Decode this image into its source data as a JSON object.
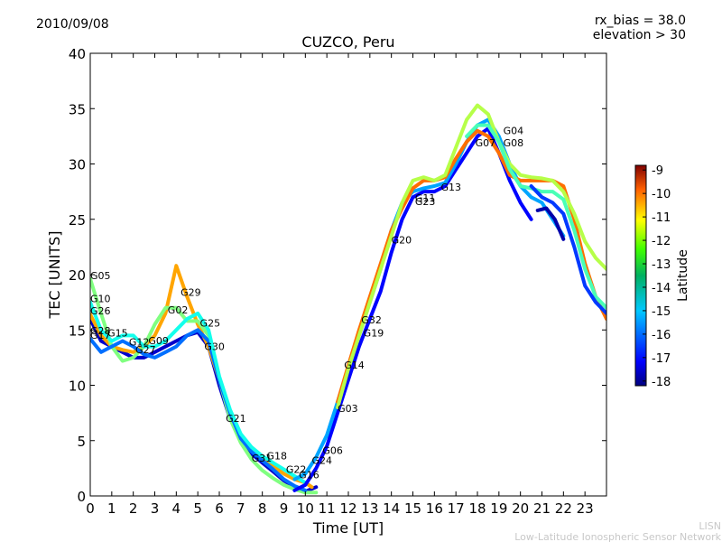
{
  "header": {
    "date": "2010/09/08",
    "rx_bias": "rx_bias = 38.0",
    "elevation": "elevation > 30"
  },
  "footer": {
    "org_short": "LISN",
    "org_long": "Low-Latitude Ionospheric Sensor Network"
  },
  "colors": {
    "axes": "#000000",
    "background": "#ffffff",
    "footer_text": "#c8c8c8",
    "colormap": [
      "#00007f",
      "#0000ff",
      "#007fff",
      "#00c8c8",
      "#00a050",
      "#00e000",
      "#90ff00",
      "#ffff00",
      "#ff9000",
      "#ff0000",
      "#7f0000"
    ]
  },
  "chart_data": {
    "type": "scatter",
    "title": "CUZCO, Peru",
    "xlabel": "Time [UT]",
    "ylabel": "TEC [UNITS]",
    "xlim": [
      0,
      24
    ],
    "ylim": [
      0,
      40
    ],
    "xticks": [
      "0",
      "1",
      "2",
      "3",
      "4",
      "5",
      "6",
      "7",
      "8",
      "9",
      "10",
      "11",
      "12",
      "13",
      "14",
      "15",
      "16",
      "17",
      "18",
      "19",
      "20",
      "21",
      "22",
      "23"
    ],
    "yticks": [
      "0",
      "5",
      "10",
      "15",
      "20",
      "25",
      "30",
      "35",
      "40"
    ],
    "grid": false,
    "colorbar": {
      "label": "Latitude",
      "range": [
        -18.2,
        -8.8
      ],
      "ticks": [
        "-9",
        "-10",
        "-11",
        "-12",
        "-13",
        "-14",
        "-15",
        "-16",
        "-17",
        "-18"
      ]
    },
    "satellite_labels": [
      {
        "prn": "G05",
        "x": 0.0,
        "y": 19.6
      },
      {
        "prn": "G10",
        "x": 0.0,
        "y": 17.5
      },
      {
        "prn": "G26",
        "x": 0.0,
        "y": 16.4
      },
      {
        "prn": "G28",
        "x": 0.0,
        "y": 14.6
      },
      {
        "prn": "G17",
        "x": 0.0,
        "y": 14.2
      },
      {
        "prn": "G15",
        "x": 0.8,
        "y": 14.4
      },
      {
        "prn": "G12",
        "x": 1.8,
        "y": 13.6
      },
      {
        "prn": "G27",
        "x": 2.1,
        "y": 12.9
      },
      {
        "prn": "G09",
        "x": 2.7,
        "y": 13.7
      },
      {
        "prn": "G02",
        "x": 3.6,
        "y": 16.5
      },
      {
        "prn": "G29",
        "x": 4.2,
        "y": 18.1
      },
      {
        "prn": "G25",
        "x": 5.1,
        "y": 15.3
      },
      {
        "prn": "G30",
        "x": 5.3,
        "y": 13.2
      },
      {
        "prn": "G21",
        "x": 6.3,
        "y": 6.7
      },
      {
        "prn": "G31",
        "x": 7.5,
        "y": 3.1
      },
      {
        "prn": "G18",
        "x": 8.2,
        "y": 3.3
      },
      {
        "prn": "G22",
        "x": 9.1,
        "y": 2.1
      },
      {
        "prn": "G16",
        "x": 9.7,
        "y": 1.6
      },
      {
        "prn": "G24",
        "x": 10.3,
        "y": 2.9
      },
      {
        "prn": "G06",
        "x": 10.8,
        "y": 3.8
      },
      {
        "prn": "G03",
        "x": 11.5,
        "y": 7.6
      },
      {
        "prn": "G14",
        "x": 11.8,
        "y": 11.5
      },
      {
        "prn": "G19",
        "x": 12.7,
        "y": 14.4
      },
      {
        "prn": "G32",
        "x": 12.6,
        "y": 15.6
      },
      {
        "prn": "G20",
        "x": 14.0,
        "y": 22.8
      },
      {
        "prn": "G11",
        "x": 15.1,
        "y": 26.6
      },
      {
        "prn": "G23",
        "x": 15.1,
        "y": 26.3
      },
      {
        "prn": "G13",
        "x": 16.3,
        "y": 27.6
      },
      {
        "prn": "G07",
        "x": 17.9,
        "y": 31.6
      },
      {
        "prn": "G04",
        "x": 19.2,
        "y": 32.7
      },
      {
        "prn": "G08",
        "x": 19.2,
        "y": 31.6
      }
    ],
    "series": [
      {
        "lat": -17.5,
        "x": [
          0,
          0.5,
          1,
          1.5,
          2,
          2.5,
          3,
          3.5,
          4,
          4.5,
          5,
          5.5,
          6,
          6.5,
          7,
          7.5,
          8,
          8.5,
          9,
          9.5,
          10,
          10.5
        ],
        "y": [
          16,
          14,
          13.5,
          13,
          12.5,
          12.5,
          13,
          13.5,
          14,
          14.5,
          14.8,
          13.5,
          10,
          7,
          5,
          3.8,
          3.0,
          2.2,
          1.4,
          0.8,
          0.4,
          0.8
        ]
      },
      {
        "lat": -11.5,
        "x": [
          0,
          0.5,
          1,
          1.5,
          2,
          2.5,
          3,
          3.5,
          4,
          4.5,
          5,
          5.5,
          6,
          6.5,
          7,
          7.5,
          8,
          8.5,
          9,
          9.5,
          10,
          10.3
        ],
        "y": [
          16.4,
          14.5,
          13.5,
          13.2,
          13,
          13.5,
          14.5,
          16.5,
          20.8,
          18,
          15.5,
          13.5,
          10.5,
          7.5,
          5.5,
          4.3,
          3.4,
          2.7,
          2.0,
          1.5,
          1.2,
          0.8
        ]
      },
      {
        "lat": -13.5,
        "x": [
          0,
          0.5,
          1,
          1.5,
          2,
          2.5,
          3,
          3.5,
          4,
          4.5,
          5,
          5.5,
          6,
          6.5,
          7,
          7.5,
          8,
          8.5,
          9,
          9.5,
          10,
          10.5
        ],
        "y": [
          19.6,
          16.5,
          13.5,
          12.2,
          12.5,
          13.5,
          15.5,
          17,
          17,
          15.8,
          15.8,
          14.5,
          10.5,
          7,
          4.8,
          3.3,
          2.3,
          1.6,
          1.0,
          0.6,
          0.3,
          0.3
        ]
      },
      {
        "lat": -16.0,
        "x": [
          0,
          0.5,
          1,
          1.5,
          2,
          2.5,
          3,
          3.5,
          4,
          4.5,
          5,
          5.5,
          6,
          6.5,
          7,
          7.5,
          8,
          8.5,
          9,
          9.5,
          10
        ],
        "y": [
          14.2,
          13,
          13.5,
          14,
          13.5,
          12.8,
          12.5,
          13,
          13.5,
          14.5,
          15,
          14,
          10.5,
          7.5,
          5.2,
          4.0,
          3.2,
          2.4,
          1.5,
          0.9,
          0.5
        ]
      },
      {
        "lat": -14.5,
        "x": [
          0,
          0.5,
          1,
          1.5,
          2,
          2.5,
          3,
          3.5,
          4,
          4.5,
          5,
          5.5,
          6,
          6.5,
          7,
          7.5,
          8,
          8.5,
          9,
          9.5,
          10
        ],
        "y": [
          17.5,
          15,
          14,
          14.5,
          14.5,
          13.5,
          13.5,
          14,
          15,
          16,
          16.5,
          15,
          10.8,
          7.8,
          5.6,
          4.4,
          3.6,
          3.0,
          2.4,
          1.8,
          1.2
        ]
      },
      {
        "lat": -17.0,
        "x": [
          9.5,
          10,
          10.5,
          11,
          11.5,
          12,
          12.5,
          13,
          13.5,
          14,
          14.5,
          15,
          15.5,
          16,
          16.5,
          17,
          17.5,
          18,
          18.5,
          19,
          19.5,
          20,
          20.5
        ],
        "y": [
          0.5,
          1,
          2.5,
          4.5,
          7.5,
          10.5,
          13.5,
          16,
          18.5,
          22,
          25,
          27,
          27.5,
          27.5,
          28,
          29.5,
          31,
          32.5,
          33.2,
          31,
          28.5,
          26.5,
          25
        ]
      },
      {
        "lat": -15.5,
        "x": [
          9.5,
          10,
          10.5,
          11,
          11.5,
          12,
          12.5,
          13,
          13.5,
          14,
          14.5,
          15,
          15.5,
          16,
          16.5,
          17,
          17.5,
          18,
          18.5,
          19,
          19.5,
          20,
          20.5,
          21,
          21.5,
          22
        ],
        "y": [
          1.5,
          2,
          3.5,
          5.5,
          8.5,
          11.5,
          14.5,
          17.5,
          20.5,
          24,
          26.5,
          27.5,
          27.8,
          28,
          28.3,
          30,
          32,
          33.5,
          34,
          32.5,
          30,
          28,
          27,
          26.5,
          25,
          23.5
        ]
      },
      {
        "lat": -11.0,
        "x": [
          11.5,
          12,
          12.5,
          13,
          13.5,
          14,
          14.5,
          15,
          15.5,
          16,
          16.5,
          17,
          17.5,
          18,
          18.5,
          19,
          19.5,
          20,
          20.5,
          21,
          21.5,
          22,
          22.5,
          23,
          23.5,
          24
        ],
        "y": [
          8.5,
          11.8,
          15,
          18,
          21,
          24,
          26,
          27.8,
          28.5,
          28.5,
          28.8,
          30.5,
          32,
          33,
          32.5,
          31,
          29,
          28.5,
          28.5,
          28.5,
          28.5,
          28,
          25,
          21,
          18,
          16
        ]
      },
      {
        "lat": -13.0,
        "x": [
          11.5,
          12,
          12.5,
          13,
          13.5,
          14,
          14.5,
          15,
          15.5,
          16,
          16.5,
          17,
          17.5,
          18,
          18.5,
          19,
          19.5,
          20,
          20.5,
          21,
          21.5,
          22,
          22.5,
          23,
          23.5,
          24
        ],
        "y": [
          8,
          11.5,
          14.5,
          17.5,
          20.5,
          23.5,
          26.5,
          28.5,
          28.8,
          28.5,
          29,
          31.5,
          34,
          35.3,
          34.5,
          32,
          30,
          29,
          28.8,
          28.7,
          28.5,
          27.5,
          25.5,
          23,
          21.5,
          20.5
        ]
      },
      {
        "lat": -14.0,
        "x": [
          17.5,
          18,
          18.5,
          19,
          19.5,
          20,
          20.5,
          21,
          21.5,
          22,
          22.5,
          23,
          23.5,
          24
        ],
        "y": [
          32.5,
          33.5,
          33.5,
          32,
          29.5,
          28,
          27.8,
          27.5,
          27.5,
          26.8,
          24,
          20.5,
          18,
          17
        ]
      },
      {
        "lat": -16.5,
        "x": [
          20.5,
          21,
          21.5,
          22,
          22.5,
          23,
          23.5,
          24
        ],
        "y": [
          28,
          27,
          26.5,
          25.5,
          22.5,
          19,
          17.5,
          16.5
        ]
      },
      {
        "lat": -17.8,
        "x": [
          20.8,
          21.2,
          21.6,
          22.0
        ],
        "y": [
          25.8,
          26,
          25,
          23.2
        ]
      }
    ]
  }
}
